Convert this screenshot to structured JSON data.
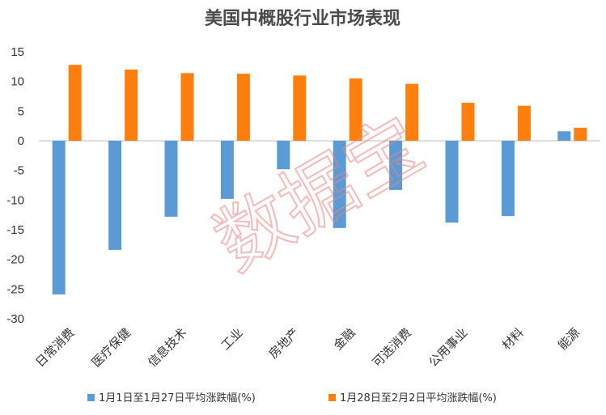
{
  "chart_data": {
    "type": "bar",
    "title": "美国中概股行业市场表现",
    "categories": [
      "日常消费",
      "医疗保健",
      "信息技术",
      "工业",
      "房地产",
      "金融",
      "可选消费",
      "公用事业",
      "材料",
      "能源"
    ],
    "series": [
      {
        "name": "1月1日至1月27日平均涨跌幅(%)",
        "color": "#5b9bd5",
        "values": [
          -25.9,
          -18.4,
          -12.8,
          -9.8,
          -4.8,
          -14.7,
          -8.3,
          -13.8,
          -12.7,
          1.6
        ]
      },
      {
        "name": "1月28日至2月2日平均涨跌幅(%)",
        "color": "#ff7f0e",
        "values": [
          12.8,
          12.0,
          11.4,
          11.3,
          11.0,
          10.5,
          9.6,
          6.4,
          5.9,
          2.2
        ]
      }
    ],
    "yticks": [
      15,
      10,
      5,
      0,
      -5,
      -10,
      -15,
      -20,
      -25,
      -30
    ],
    "ylim": [
      -30,
      15
    ],
    "grid": false,
    "legend_position": "bottom"
  },
  "watermark": "数据宝"
}
